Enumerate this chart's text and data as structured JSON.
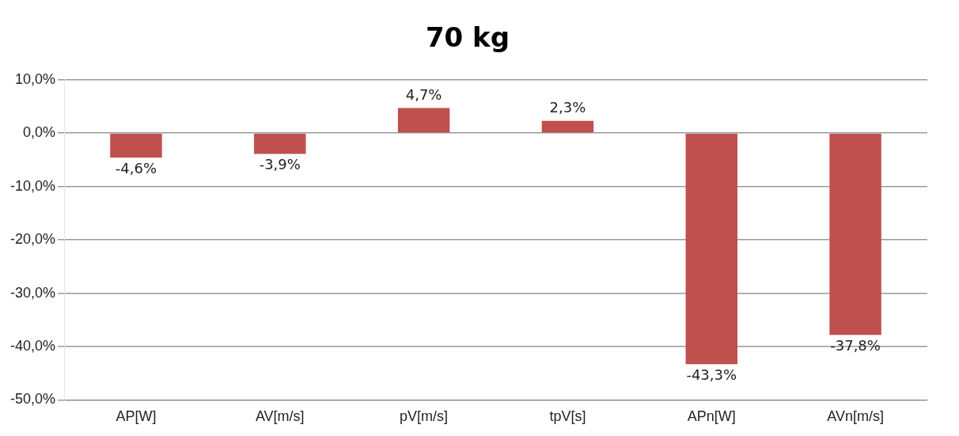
{
  "chart_data": {
    "type": "bar",
    "title": "70 kg",
    "categories": [
      "AP[W]",
      "AV[m/s]",
      "pV[m/s]",
      "tpV[s]",
      "APn[W]",
      "AVn[m/s]"
    ],
    "values": [
      -4.6,
      -3.9,
      4.7,
      2.3,
      -43.3,
      -37.8
    ],
    "value_labels": [
      "-4,6%",
      "-3,9%",
      "4,7%",
      "2,3%",
      "-43,3%",
      "-37,8%"
    ],
    "color": "#c0504d",
    "ylim": [
      -50,
      10
    ],
    "yticks": [
      {
        "value": -50,
        "label": "-50,0%"
      },
      {
        "value": -40,
        "label": "-40,0%"
      },
      {
        "value": -30,
        "label": "-30,0%"
      },
      {
        "value": -20,
        "label": "-20,0%"
      },
      {
        "value": -10,
        "label": "-10,0%"
      },
      {
        "value": 0,
        "label": "0,0%"
      },
      {
        "value": 10,
        "label": "10,0%"
      }
    ],
    "grid": "y",
    "legend": false
  }
}
